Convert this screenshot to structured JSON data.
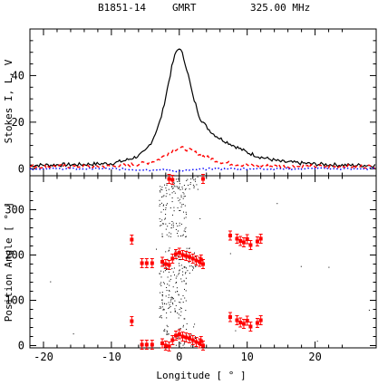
{
  "header": {
    "source": "B1851-14",
    "telescope": "GMRT",
    "frequency": "325.00 MHz"
  },
  "colors": {
    "stokes_I": "#000000",
    "stokes_L": "#ff0000",
    "stokes_V": "#0000ff",
    "pa_points": "#ff0000",
    "pa_scatter": "#000000"
  },
  "chart_data": [
    {
      "type": "line",
      "panel": "top",
      "ylabel": "Stokes I, L, V",
      "xlim": [
        -22,
        29
      ],
      "ylim": [
        -3,
        60
      ],
      "yticks": [
        "0",
        "20",
        "40"
      ],
      "series": [
        {
          "name": "I",
          "style": "solid",
          "x": [
            -22,
            -15,
            -10,
            -8,
            -6,
            -5,
            -4,
            -3,
            -2.5,
            -2,
            -1.5,
            -1,
            -0.5,
            0,
            0.5,
            1,
            1.5,
            2,
            2.5,
            3,
            4,
            5,
            6,
            8,
            10,
            12,
            15,
            20,
            25,
            29
          ],
          "y": [
            1.5,
            1.8,
            2.3,
            3.5,
            5.5,
            7.5,
            12,
            19,
            24,
            31,
            38,
            45,
            50,
            52,
            49,
            44,
            38,
            31,
            27,
            22,
            18,
            15,
            13,
            10,
            7,
            5,
            3,
            2,
            1.5,
            1.5
          ]
        },
        {
          "name": "L",
          "style": "dashed",
          "x": [
            -22,
            -15,
            -10,
            -8,
            -6,
            -5,
            -4,
            -3,
            -2,
            -1,
            0,
            1,
            2,
            3,
            4,
            5,
            6,
            8,
            10,
            15,
            20,
            29
          ],
          "y": [
            1,
            1,
            1,
            1.5,
            2,
            2.5,
            3,
            4,
            6,
            8,
            9,
            8.5,
            7.5,
            6,
            5,
            4,
            3,
            2,
            1.5,
            1,
            1,
            1
          ]
        },
        {
          "name": "V",
          "style": "dotted",
          "x": [
            -22,
            -10,
            -5,
            -3,
            -2,
            -1,
            0,
            1,
            2,
            3,
            5,
            10,
            20,
            29
          ],
          "y": [
            0,
            0,
            -0.5,
            -0.5,
            -0.5,
            -0.8,
            -1,
            -0.8,
            -0.6,
            -0.3,
            0,
            0,
            0,
            0
          ]
        }
      ]
    },
    {
      "type": "scatter",
      "panel": "bottom",
      "xlabel": "Longitude [ ° ]",
      "ylabel": "Position Angle [ ° ]",
      "xlim": [
        -22,
        29
      ],
      "ylim": [
        -5,
        375
      ],
      "xticks": [
        "-20",
        "-10",
        "0",
        "10",
        "20"
      ],
      "yticks": [
        "0",
        "100",
        "200",
        "300"
      ],
      "pa_points": [
        {
          "x": -7,
          "y": 234
        },
        {
          "x": -7,
          "y": 54
        },
        {
          "x": -5.5,
          "y": 182
        },
        {
          "x": -4.8,
          "y": 182
        },
        {
          "x": -4,
          "y": 182
        },
        {
          "x": -5.5,
          "y": 2
        },
        {
          "x": -4.8,
          "y": 2
        },
        {
          "x": -4,
          "y": 2
        },
        {
          "x": -2.5,
          "y": 185
        },
        {
          "x": -2,
          "y": 180
        },
        {
          "x": -1.5,
          "y": 178
        },
        {
          "x": -1,
          "y": 192
        },
        {
          "x": -0.5,
          "y": 202
        },
        {
          "x": 0,
          "y": 205
        },
        {
          "x": 0.5,
          "y": 200
        },
        {
          "x": 1,
          "y": 198
        },
        {
          "x": 1.5,
          "y": 196
        },
        {
          "x": 2,
          "y": 192
        },
        {
          "x": 2.5,
          "y": 188
        },
        {
          "x": 3,
          "y": 185
        },
        {
          "x": 3.5,
          "y": 180
        },
        {
          "x": 3.2,
          "y": 190
        },
        {
          "x": -2.5,
          "y": 5
        },
        {
          "x": -2,
          "y": 0
        },
        {
          "x": -1.5,
          "y": -2
        },
        {
          "x": -1,
          "y": 12
        },
        {
          "x": -0.5,
          "y": 22
        },
        {
          "x": 0,
          "y": 25
        },
        {
          "x": 0.5,
          "y": 20
        },
        {
          "x": 1,
          "y": 18
        },
        {
          "x": 1.5,
          "y": 16
        },
        {
          "x": 2,
          "y": 12
        },
        {
          "x": 2.5,
          "y": 8
        },
        {
          "x": 3,
          "y": 5
        },
        {
          "x": 3.5,
          "y": 0
        },
        {
          "x": 3.2,
          "y": 10
        },
        {
          "x": -1.5,
          "y": 368
        },
        {
          "x": -1,
          "y": 366
        },
        {
          "x": 3.5,
          "y": 368
        },
        {
          "x": 7.5,
          "y": 243
        },
        {
          "x": 8.5,
          "y": 236
        },
        {
          "x": 9,
          "y": 231
        },
        {
          "x": 9.5,
          "y": 228
        },
        {
          "x": 10,
          "y": 235
        },
        {
          "x": 10.5,
          "y": 222
        },
        {
          "x": 11.5,
          "y": 230
        },
        {
          "x": 12,
          "y": 236
        },
        {
          "x": 7.5,
          "y": 63
        },
        {
          "x": 8.5,
          "y": 56
        },
        {
          "x": 9,
          "y": 51
        },
        {
          "x": 9.5,
          "y": 48
        },
        {
          "x": 10,
          "y": 55
        },
        {
          "x": 10.5,
          "y": 42
        },
        {
          "x": 11.5,
          "y": 50
        },
        {
          "x": 12,
          "y": 56
        }
      ]
    }
  ]
}
